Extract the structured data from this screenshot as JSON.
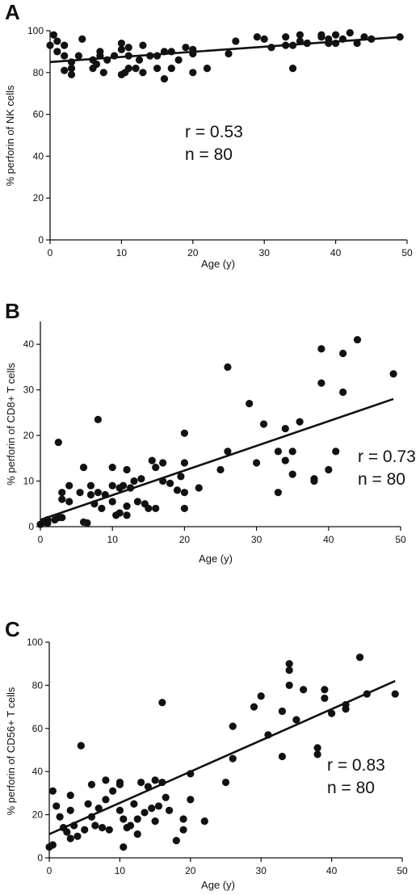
{
  "chart_data": [
    {
      "panel": "A",
      "type": "scatter",
      "ylabel": "% perforin of NK cells",
      "xlabel": "Age (y)",
      "xlim": [
        0,
        50
      ],
      "ylim": [
        0,
        100
      ],
      "xticks": [
        0,
        10,
        20,
        30,
        40,
        50
      ],
      "yticks": [
        0,
        20,
        40,
        60,
        80,
        100
      ],
      "annotations": [
        "r = 0.53",
        "n = 80"
      ],
      "trendline": {
        "x": [
          0,
          49
        ],
        "y": [
          85,
          97
        ]
      },
      "points": [
        [
          0,
          93
        ],
        [
          0.5,
          98
        ],
        [
          1,
          95
        ],
        [
          1,
          90
        ],
        [
          2,
          93
        ],
        [
          2,
          88
        ],
        [
          2,
          81
        ],
        [
          3,
          85
        ],
        [
          3,
          82
        ],
        [
          3,
          79
        ],
        [
          4,
          88
        ],
        [
          4.5,
          96
        ],
        [
          6,
          82
        ],
        [
          6,
          86
        ],
        [
          6.5,
          84
        ],
        [
          7,
          88
        ],
        [
          7,
          90
        ],
        [
          7.5,
          80
        ],
        [
          8,
          86
        ],
        [
          9,
          88
        ],
        [
          10,
          94
        ],
        [
          10,
          91
        ],
        [
          10,
          79
        ],
        [
          10.5,
          80
        ],
        [
          11,
          82
        ],
        [
          11,
          88
        ],
        [
          11,
          92
        ],
        [
          12,
          82
        ],
        [
          12.5,
          86
        ],
        [
          13,
          93
        ],
        [
          13,
          80
        ],
        [
          14,
          88
        ],
        [
          15,
          88
        ],
        [
          15,
          82
        ],
        [
          16,
          90
        ],
        [
          16,
          77
        ],
        [
          17,
          90
        ],
        [
          17,
          82
        ],
        [
          18,
          86
        ],
        [
          19,
          92
        ],
        [
          20,
          89
        ],
        [
          20,
          80
        ],
        [
          20,
          91
        ],
        [
          22,
          82
        ],
        [
          25,
          89
        ],
        [
          26,
          95
        ],
        [
          29,
          97
        ],
        [
          30,
          96
        ],
        [
          31,
          92
        ],
        [
          33,
          97
        ],
        [
          33,
          93
        ],
        [
          34,
          93
        ],
        [
          34,
          82
        ],
        [
          35,
          98
        ],
        [
          35,
          95
        ],
        [
          36,
          94
        ],
        [
          36,
          94
        ],
        [
          38,
          97
        ],
        [
          38,
          98
        ],
        [
          39,
          94
        ],
        [
          39,
          96
        ],
        [
          40,
          98
        ],
        [
          40,
          94
        ],
        [
          41,
          96
        ],
        [
          42,
          99
        ],
        [
          43,
          94
        ],
        [
          44,
          97
        ],
        [
          45,
          96
        ],
        [
          49,
          97
        ]
      ]
    },
    {
      "panel": "B",
      "type": "scatter",
      "ylabel": "% perforin of CD8+ T cells",
      "xlabel": "Age (y)",
      "xlim": [
        0,
        50
      ],
      "ylim": [
        0,
        45
      ],
      "xticks": [
        0,
        10,
        20,
        30,
        40,
        50
      ],
      "yticks": [
        0,
        10,
        20,
        30,
        40
      ],
      "annotations": [
        "r = 0.73",
        "n = 80"
      ],
      "trendline": {
        "x": [
          0,
          49
        ],
        "y": [
          1.5,
          28
        ]
      },
      "points": [
        [
          0,
          0.5
        ],
        [
          0.5,
          1
        ],
        [
          1,
          1.5
        ],
        [
          1,
          0.8
        ],
        [
          2,
          1.5
        ],
        [
          2.5,
          2
        ],
        [
          2.5,
          18.5
        ],
        [
          3,
          7.5
        ],
        [
          3,
          6
        ],
        [
          3,
          2
        ],
        [
          4,
          5.5
        ],
        [
          4,
          9
        ],
        [
          5.5,
          7.5
        ],
        [
          6,
          13
        ],
        [
          6,
          1
        ],
        [
          6.5,
          0.8
        ],
        [
          7,
          7
        ],
        [
          7,
          9
        ],
        [
          7.5,
          5
        ],
        [
          8,
          23.5
        ],
        [
          8,
          7.5
        ],
        [
          8.5,
          4
        ],
        [
          9,
          7
        ],
        [
          10,
          13
        ],
        [
          10,
          9
        ],
        [
          10,
          5.5
        ],
        [
          10.5,
          2.5
        ],
        [
          11,
          8.5
        ],
        [
          11,
          3
        ],
        [
          11.5,
          9
        ],
        [
          12,
          12.5
        ],
        [
          12,
          4.5
        ],
        [
          12,
          2.5
        ],
        [
          12.5,
          8.5
        ],
        [
          13,
          10
        ],
        [
          13.5,
          5.5
        ],
        [
          14,
          10.5
        ],
        [
          14.5,
          5
        ],
        [
          15,
          4
        ],
        [
          15.5,
          14.5
        ],
        [
          16,
          13
        ],
        [
          16,
          4
        ],
        [
          17,
          10
        ],
        [
          17,
          14
        ],
        [
          18,
          9.5
        ],
        [
          19,
          8
        ],
        [
          19.5,
          11
        ],
        [
          20,
          20.5
        ],
        [
          20,
          14
        ],
        [
          20,
          7.5
        ],
        [
          20,
          4
        ],
        [
          22,
          8.5
        ],
        [
          25,
          12.5
        ],
        [
          26,
          35
        ],
        [
          26,
          16.5
        ],
        [
          29,
          27
        ],
        [
          30,
          14
        ],
        [
          31,
          22.5
        ],
        [
          33,
          16.5
        ],
        [
          33,
          7.5
        ],
        [
          34,
          21.5
        ],
        [
          34,
          14.5
        ],
        [
          35,
          11.5
        ],
        [
          35,
          16.5
        ],
        [
          36,
          23
        ],
        [
          38,
          10.5
        ],
        [
          38,
          10
        ],
        [
          39,
          39
        ],
        [
          39,
          31.5
        ],
        [
          40,
          12.5
        ],
        [
          41,
          16.5
        ],
        [
          42,
          38
        ],
        [
          42,
          29.5
        ],
        [
          44,
          41
        ],
        [
          49,
          33.5
        ]
      ]
    },
    {
      "panel": "C",
      "type": "scatter",
      "ylabel": "% perforin of CD56+ T cells",
      "xlabel": "Age (y)",
      "xlim": [
        0,
        50
      ],
      "ylim": [
        0,
        100
      ],
      "xticks": [
        0,
        10,
        20,
        30,
        40,
        50
      ],
      "yticks": [
        0,
        20,
        40,
        60,
        80,
        100
      ],
      "annotations": [
        "r = 0.83",
        "n = 80"
      ],
      "trendline": {
        "x": [
          0,
          49
        ],
        "y": [
          11,
          82
        ]
      },
      "points": [
        [
          0,
          5
        ],
        [
          0.5,
          31
        ],
        [
          0.5,
          6
        ],
        [
          1,
          24
        ],
        [
          1.5,
          19
        ],
        [
          2,
          14
        ],
        [
          2.5,
          12
        ],
        [
          3,
          22
        ],
        [
          3,
          29
        ],
        [
          3,
          9
        ],
        [
          3.5,
          15
        ],
        [
          4,
          10
        ],
        [
          4.5,
          52
        ],
        [
          5,
          13
        ],
        [
          5.5,
          25
        ],
        [
          6,
          34
        ],
        [
          6,
          19
        ],
        [
          6.5,
          15
        ],
        [
          7,
          23
        ],
        [
          7.5,
          14
        ],
        [
          8,
          36
        ],
        [
          8,
          27
        ],
        [
          8.5,
          13
        ],
        [
          9,
          31
        ],
        [
          10,
          35
        ],
        [
          10,
          34
        ],
        [
          10,
          22
        ],
        [
          10.5,
          18
        ],
        [
          10.5,
          5
        ],
        [
          11,
          14
        ],
        [
          11.5,
          15
        ],
        [
          12,
          25
        ],
        [
          12.5,
          18
        ],
        [
          12.5,
          11
        ],
        [
          13,
          35
        ],
        [
          13.5,
          21
        ],
        [
          14,
          33
        ],
        [
          14.5,
          23
        ],
        [
          15,
          36
        ],
        [
          15,
          17
        ],
        [
          15.5,
          24
        ],
        [
          16,
          35
        ],
        [
          16,
          72
        ],
        [
          16.5,
          28
        ],
        [
          17,
          22
        ],
        [
          18,
          8
        ],
        [
          19,
          13
        ],
        [
          19,
          18
        ],
        [
          20,
          39
        ],
        [
          20,
          27
        ],
        [
          22,
          17
        ],
        [
          25,
          35
        ],
        [
          26,
          46
        ],
        [
          26,
          61
        ],
        [
          29,
          70
        ],
        [
          30,
          75
        ],
        [
          31,
          57
        ],
        [
          33,
          47
        ],
        [
          33,
          68
        ],
        [
          34,
          90
        ],
        [
          34,
          87
        ],
        [
          34,
          80
        ],
        [
          35,
          64
        ],
        [
          36,
          78
        ],
        [
          38,
          51
        ],
        [
          38,
          48
        ],
        [
          39,
          78
        ],
        [
          39,
          74
        ],
        [
          40,
          67
        ],
        [
          42,
          69
        ],
        [
          42,
          71
        ],
        [
          44,
          93
        ],
        [
          45,
          76
        ],
        [
          49,
          76
        ]
      ]
    }
  ]
}
